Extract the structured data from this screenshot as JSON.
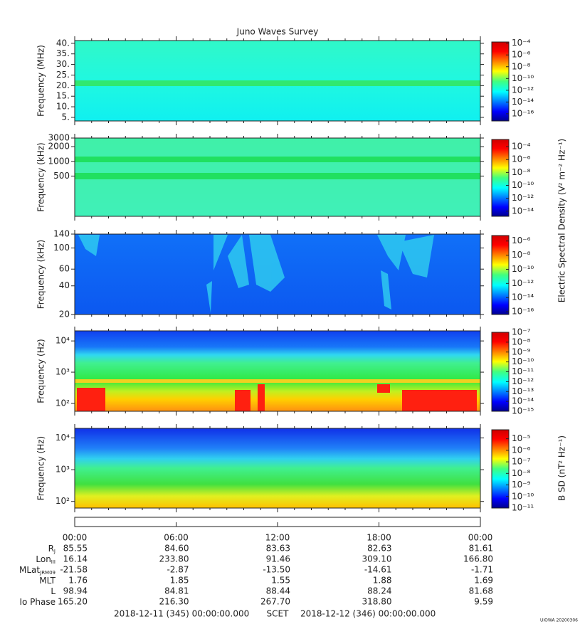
{
  "title": "Juno Waves Survey",
  "chart_data": [
    {
      "type": "spectrogram",
      "ylabel": "Frequency (MHz)",
      "ylim": [
        3.3,
        41.3
      ],
      "yscale": "linear",
      "yticks": [
        {
          "value": 40,
          "label": "40."
        },
        {
          "value": 35,
          "label": "35."
        },
        {
          "value": 30,
          "label": "30."
        },
        {
          "value": 25,
          "label": "25."
        },
        {
          "value": 20,
          "label": "20."
        },
        {
          "value": 15,
          "label": "15."
        },
        {
          "value": 10,
          "label": "10."
        },
        {
          "value": 5,
          "label": "5."
        }
      ],
      "clim": [
        6e-18,
        0.00016
      ],
      "cticks": [
        {
          "value": 0.0001,
          "label": "10⁻⁴"
        },
        {
          "value": 1e-06,
          "label": "10⁻⁶"
        },
        {
          "value": 1e-08,
          "label": "10⁻⁸"
        },
        {
          "value": 1e-10,
          "label": "10⁻¹⁰"
        },
        {
          "value": 1e-12,
          "label": "10⁻¹²"
        },
        {
          "value": 1e-14,
          "label": "10⁻¹⁴"
        },
        {
          "value": 1e-16,
          "label": "10⁻¹⁶"
        }
      ]
    },
    {
      "type": "spectrogram",
      "ylabel": "Frequency (kHz)",
      "ylim": [
        75,
        3000
      ],
      "yscale": "log",
      "yticks": [
        3000,
        2000,
        1000,
        500
      ],
      "clim": [
        1.6e-15,
        0.0013
      ],
      "cticks": [
        {
          "value": 0.0001,
          "label": "10⁻⁴"
        },
        {
          "value": 1e-06,
          "label": "10⁻⁶"
        },
        {
          "value": 1e-08,
          "label": "10⁻⁸"
        },
        {
          "value": 1e-10,
          "label": "10⁻¹⁰"
        },
        {
          "value": 1e-12,
          "label": "10⁻¹²"
        },
        {
          "value": 1e-14,
          "label": "10⁻¹⁴"
        }
      ],
      "colorbar_label": "Electric Spectral Density (V² m⁻² Hz⁻¹)"
    },
    {
      "type": "spectrogram",
      "ylabel": "Frequency (kHz)",
      "ylim": [
        20,
        140
      ],
      "yscale": "log",
      "yticks": [
        140,
        100,
        60,
        40,
        20
      ],
      "clim": [
        4e-17,
        6e-06
      ],
      "cticks": [
        {
          "value": 1e-06,
          "label": "10⁻⁶"
        },
        {
          "value": 1e-08,
          "label": "10⁻⁸"
        },
        {
          "value": 1e-10,
          "label": "10⁻¹⁰"
        },
        {
          "value": 1e-12,
          "label": "10⁻¹²"
        },
        {
          "value": 1e-14,
          "label": "10⁻¹⁴"
        },
        {
          "value": 1e-16,
          "label": "10⁻¹⁶"
        }
      ]
    },
    {
      "type": "spectrogram",
      "ylabel": "Frequency (Hz)",
      "ylim": [
        56,
        21000
      ],
      "yscale": "log",
      "yticks": [
        {
          "value": 10000,
          "label": "10⁴"
        },
        {
          "value": 1000,
          "label": "10³"
        },
        {
          "value": 100,
          "label": "10²"
        }
      ],
      "clim": [
        1e-15,
        1e-07
      ],
      "cticks": [
        {
          "value": 1e-07,
          "label": "10⁻⁷"
        },
        {
          "value": 1e-08,
          "label": "10⁻⁸"
        },
        {
          "value": 1e-09,
          "label": "10⁻⁹"
        },
        {
          "value": 1e-10,
          "label": "10⁻¹⁰"
        },
        {
          "value": 1e-11,
          "label": "10⁻¹¹"
        },
        {
          "value": 1e-12,
          "label": "10⁻¹²"
        },
        {
          "value": 1e-13,
          "label": "10⁻¹³"
        },
        {
          "value": 1e-14,
          "label": "10⁻¹⁴"
        },
        {
          "value": 1e-15,
          "label": "10⁻¹⁵"
        }
      ]
    },
    {
      "type": "spectrogram",
      "ylabel": "Frequency (Hz)",
      "ylim": [
        62,
        20000
      ],
      "yscale": "log",
      "yticks": [
        {
          "value": 10000,
          "label": "10⁴"
        },
        {
          "value": 1000,
          "label": "10³"
        },
        {
          "value": 100,
          "label": "10²"
        }
      ],
      "clim": [
        1e-11,
        6e-05
      ],
      "cticks": [
        {
          "value": 1e-05,
          "label": "10⁻⁵"
        },
        {
          "value": 1e-06,
          "label": "10⁻⁶"
        },
        {
          "value": 1e-07,
          "label": "10⁻⁷"
        },
        {
          "value": 1e-08,
          "label": "10⁻⁸"
        },
        {
          "value": 1e-09,
          "label": "10⁻⁹"
        },
        {
          "value": 1e-10,
          "label": "10⁻¹⁰"
        },
        {
          "value": 1e-11,
          "label": "10⁻¹¹"
        }
      ],
      "colorbar_label": "B SD (nT² Hz⁻¹)"
    }
  ],
  "ephemeris": {
    "times": [
      "00:00",
      "06:00",
      "12:00",
      "18:00",
      "00:00"
    ],
    "rows": [
      {
        "label": "R",
        "sub": "J",
        "values": [
          "85.55",
          "84.60",
          "83.63",
          "82.63",
          "81.61"
        ]
      },
      {
        "label": "Lon",
        "sub": "III",
        "values": [
          "16.14",
          "233.80",
          "91.46",
          "309.10",
          "166.80"
        ]
      },
      {
        "label": "MLat",
        "sub": "JRM09",
        "values": [
          "-21.58",
          "-2.87",
          "-13.50",
          "-14.61",
          "-1.71"
        ]
      },
      {
        "label": "MLT",
        "values": [
          "1.76",
          "1.85",
          "1.55",
          "1.88",
          "1.69"
        ]
      },
      {
        "label": "L",
        "values": [
          "98.94",
          "84.81",
          "88.44",
          "88.24",
          "81.68"
        ]
      },
      {
        "label": "Io Phase",
        "values": [
          "165.20",
          "216.30",
          "267.70",
          "318.80",
          "9.59"
        ]
      }
    ]
  },
  "footer": {
    "start": "2018-12-11 (345) 00:00:00.000",
    "center": "SCET",
    "end": "2018-12-12 (346) 00:00:00.000",
    "stamp": "UIOWA 20200306"
  }
}
